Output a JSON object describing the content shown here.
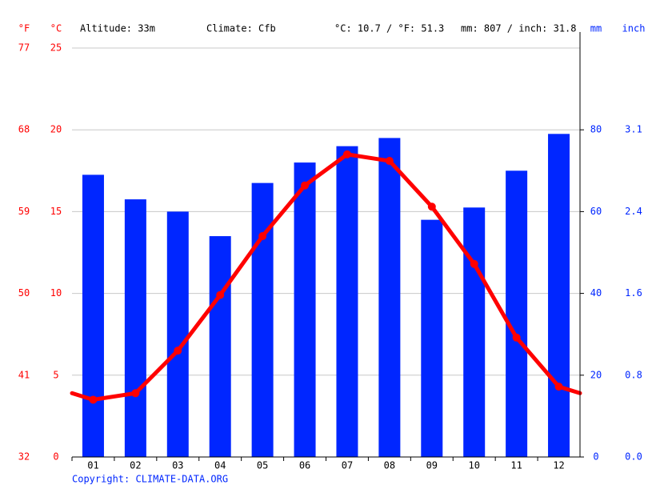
{
  "chart_data": {
    "type": "bar",
    "annotations": [
      "Altitude: 33m",
      "Climate: Cfb",
      "°C: 10.7 / °F: 51.3",
      "mm: 807 / inch: 31.8"
    ],
    "y_unit_labels": [
      "°F",
      "°C"
    ],
    "y2_unit_labels": [
      "mm",
      "inch"
    ],
    "footer": "Copyright: CLIMATE-DATA.ORG",
    "categories": [
      "01",
      "02",
      "03",
      "04",
      "05",
      "06",
      "07",
      "08",
      "09",
      "10",
      "11",
      "12"
    ],
    "series": [
      {
        "type": "bar",
        "axis": "y2",
        "color": "#0026ff",
        "values": [
          69,
          63,
          60,
          54,
          67,
          72,
          76,
          78,
          58,
          61,
          70,
          79
        ]
      },
      {
        "type": "line",
        "color": "#ff0000",
        "values": [
          3.5,
          3.9,
          6.5,
          9.9,
          13.5,
          16.6,
          18.5,
          18.1,
          15.3,
          11.8,
          7.3,
          4.3
        ]
      }
    ],
    "ylim": [
      0,
      25
    ],
    "yticks": [
      0,
      5,
      10,
      15,
      20,
      25
    ],
    "yticks_f": [
      {
        "value": 0,
        "label": "32"
      },
      {
        "value": 5,
        "label": "41"
      },
      {
        "value": 10,
        "label": "50"
      },
      {
        "value": 15,
        "label": "59"
      },
      {
        "value": 20,
        "label": "68"
      },
      {
        "value": 25,
        "label": "77"
      }
    ],
    "y2lim": [
      0,
      100
    ],
    "y2ticks": [
      0,
      20,
      40,
      60,
      80
    ],
    "y2ticks_inch": [
      {
        "value": 0,
        "label": "0.0"
      },
      {
        "value": 20,
        "label": "0.8"
      },
      {
        "value": 40,
        "label": "1.6"
      },
      {
        "value": 60,
        "label": "2.4"
      },
      {
        "value": 80,
        "label": "3.1"
      }
    ],
    "grid": true,
    "left_color": "#ff0000",
    "right_color": "#0026ff"
  }
}
